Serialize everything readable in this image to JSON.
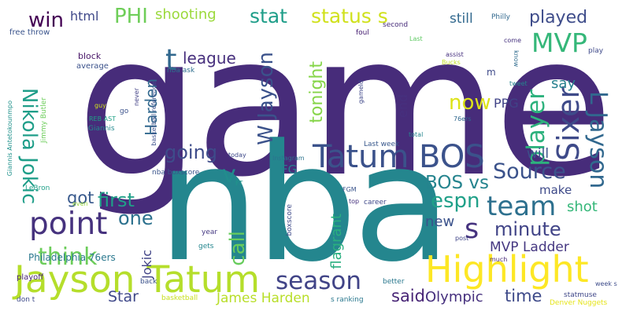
{
  "words": [
    {
      "text": "game",
      "color": "#472c7a"
    },
    {
      "text": "nba",
      "color": "#24868e"
    },
    {
      "text": "Tatum BOS",
      "color": "#3b528b"
    },
    {
      "text": "Jayson Tatum",
      "color": "#b5de2b"
    },
    {
      "text": "Highlight",
      "color": "#fde725"
    },
    {
      "text": "season",
      "color": "#414487"
    },
    {
      "text": "point",
      "color": "#46327e"
    },
    {
      "text": "think",
      "color": "#6ccd5a"
    },
    {
      "text": "Nikola Jokic",
      "color": "#1f9e89"
    },
    {
      "text": "team",
      "color": "#2d708e"
    },
    {
      "text": "MVP",
      "color": "#35b779"
    },
    {
      "text": "Sixer",
      "color": "#3e4a89"
    },
    {
      "text": "Source",
      "color": "#3b528b"
    },
    {
      "text": "player",
      "color": "#2db27d"
    },
    {
      "text": "L Jayson",
      "color": "#31688e"
    },
    {
      "text": "s",
      "color": "#46337f"
    },
    {
      "text": "stat",
      "color": "#1f9e89"
    },
    {
      "text": "status s",
      "color": "#d0e11c"
    },
    {
      "text": "win",
      "color": "#440154"
    },
    {
      "text": "PHI",
      "color": "#6ece58"
    },
    {
      "text": "shooting",
      "color": "#9bd93c"
    },
    {
      "text": "played",
      "color": "#3e4c8a"
    },
    {
      "text": "html",
      "color": "#3f4889"
    },
    {
      "text": "league",
      "color": "#472f7d"
    },
    {
      "text": "t",
      "color": "#31688e"
    },
    {
      "text": "W Jayson",
      "color": "#3b528b"
    },
    {
      "text": "tonight",
      "color": "#86d549"
    },
    {
      "text": "now",
      "color": "#dde318"
    },
    {
      "text": "PPG",
      "color": "#404387"
    },
    {
      "text": "say",
      "color": "#27808e"
    },
    {
      "text": "still",
      "color": "#31688e"
    },
    {
      "text": "going",
      "color": "#3e4c8a"
    },
    {
      "text": "first",
      "color": "#1fa088"
    },
    {
      "text": "one",
      "color": "#2c718e"
    },
    {
      "text": "got",
      "color": "#38598c"
    },
    {
      "text": "v",
      "color": "#228c8d"
    },
    {
      "text": "BOS vs",
      "color": "#25848e"
    },
    {
      "text": "espn",
      "color": "#1fa088"
    },
    {
      "text": "minute",
      "color": "#414487"
    },
    {
      "text": "call",
      "color": "#67cc5c"
    },
    {
      "text": "flagrant",
      "color": "#29af7f"
    },
    {
      "text": "new",
      "color": "#3b528b"
    },
    {
      "text": "shot",
      "color": "#35b779"
    },
    {
      "text": "MVP Ladder",
      "color": "#453781"
    },
    {
      "text": "said",
      "color": "#482576"
    },
    {
      "text": "Olympic",
      "color": "#46307e"
    },
    {
      "text": "time",
      "color": "#3e4a89"
    },
    {
      "text": "James Harden",
      "color": "#b8de29"
    },
    {
      "text": "Star",
      "color": "#3f4889"
    },
    {
      "text": "Jokic",
      "color": "#414487"
    },
    {
      "text": "Philadelphia 76ers",
      "color": "#2a788e"
    },
    {
      "text": "Harden",
      "color": "#31688e"
    },
    {
      "text": "make",
      "color": "#3e4a89"
    },
    {
      "text": "will",
      "color": "#3b528b"
    },
    {
      "text": "end",
      "color": "#46307e"
    },
    {
      "text": "FG",
      "color": "#26828e"
    },
    {
      "text": "free throw",
      "color": "#3a548c"
    },
    {
      "text": "foul",
      "color": "#482173"
    },
    {
      "text": "second",
      "color": "#472c7a"
    },
    {
      "text": "Philly",
      "color": "#31688e"
    },
    {
      "text": "Last",
      "color": "#5ec962"
    },
    {
      "text": "come",
      "color": "#46327e"
    },
    {
      "text": "play",
      "color": "#3e4989"
    },
    {
      "text": "block",
      "color": "#481668"
    },
    {
      "text": "average",
      "color": "#3b528b"
    },
    {
      "text": "assist",
      "color": "#46307e"
    },
    {
      "text": "Bucks",
      "color": "#c2df23"
    },
    {
      "text": "know",
      "color": "#2f6c8e"
    },
    {
      "text": "m",
      "color": "#3e4a89"
    },
    {
      "text": "tweet",
      "color": "#25848e"
    },
    {
      "text": "nba ask",
      "color": "#2e6e8e"
    },
    {
      "text": "basketball reference",
      "color": "#3c508b"
    },
    {
      "text": "gameId",
      "color": "#3f4788"
    },
    {
      "text": "Giannis Antetokounmpo",
      "color": "#20928c"
    },
    {
      "text": "Jimmy Butler",
      "color": "#6ccd5a"
    },
    {
      "text": "REB AST",
      "color": "#1fa187"
    },
    {
      "text": "Giannis",
      "color": "#23898e"
    },
    {
      "text": "never",
      "color": "#424186"
    },
    {
      "text": "go",
      "color": "#3b528b"
    },
    {
      "text": "guy",
      "color": "#d2e21b"
    },
    {
      "text": "76ers",
      "color": "#31688e"
    },
    {
      "text": "total",
      "color": "#25858e"
    },
    {
      "text": "Last week",
      "color": "#38588c"
    },
    {
      "text": "today",
      "color": "#3e4989"
    },
    {
      "text": "Instagram",
      "color": "#2c738e"
    },
    {
      "text": "nba boxscore",
      "color": "#3a548c"
    },
    {
      "text": "FT",
      "color": "#1f988b"
    },
    {
      "text": "year",
      "color": "#453882"
    },
    {
      "text": "FGM",
      "color": "#3a548c"
    },
    {
      "text": "top",
      "color": "#46327e"
    },
    {
      "text": "career",
      "color": "#3f4889"
    },
    {
      "text": "post",
      "color": "#404588"
    },
    {
      "text": "LeBron",
      "color": "#1fa088"
    },
    {
      "text": "even",
      "color": "#9bd93c"
    },
    {
      "text": "playoff",
      "color": "#482475"
    },
    {
      "text": "gets",
      "color": "#24868e"
    },
    {
      "text": "boxscore",
      "color": "#3e4a89"
    },
    {
      "text": "much",
      "color": "#482878"
    },
    {
      "text": "back",
      "color": "#3b528b"
    },
    {
      "text": "better",
      "color": "#2a788e"
    },
    {
      "text": "week s",
      "color": "#3e4c8a"
    },
    {
      "text": "statmuse",
      "color": "#3f4788"
    },
    {
      "text": "don t",
      "color": "#3e4a89"
    },
    {
      "text": "basketball",
      "color": "#c8e020"
    },
    {
      "text": "s ranking",
      "color": "#2a788e"
    },
    {
      "text": "Denver Nuggets",
      "color": "#e5e419"
    }
  ]
}
